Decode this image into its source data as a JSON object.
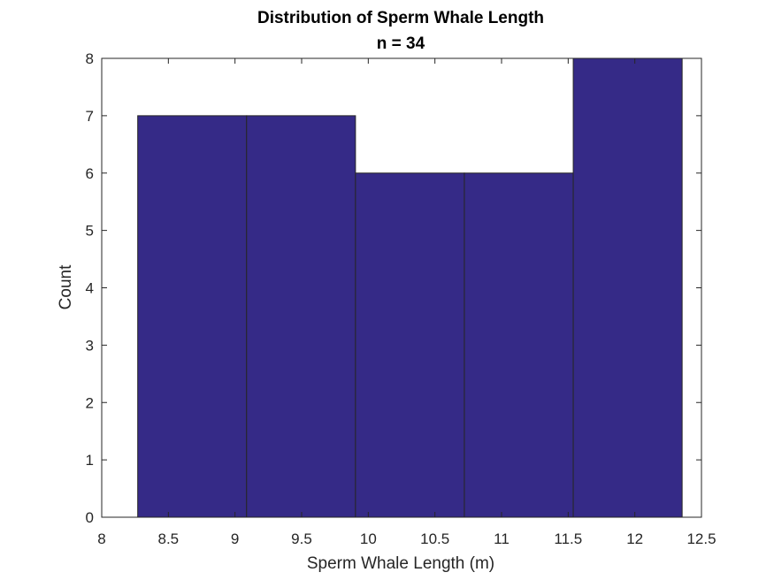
{
  "chart_data": {
    "type": "bar",
    "title": "Distribution of Sperm Whale Length",
    "subtitle": "n = 34",
    "xlabel": "Sperm Whale Length (m)",
    "ylabel": "Count",
    "bin_edges": [
      8.27,
      9.087,
      9.904,
      10.721,
      11.538,
      12.355
    ],
    "values": [
      7,
      7,
      6,
      6,
      8
    ],
    "xlim": [
      8,
      12.5
    ],
    "ylim": [
      0,
      8
    ],
    "xticks": [
      8,
      8.5,
      9,
      9.5,
      10,
      10.5,
      11,
      11.5,
      12,
      12.5
    ],
    "xtick_labels": [
      "8",
      "8.5",
      "9",
      "9.5",
      "10",
      "10.5",
      "11",
      "11.5",
      "12",
      "12.5"
    ],
    "yticks": [
      0,
      1,
      2,
      3,
      4,
      5,
      6,
      7,
      8
    ],
    "ytick_labels": [
      "0",
      "1",
      "2",
      "3",
      "4",
      "5",
      "6",
      "7",
      "8"
    ],
    "grid": false,
    "bar_color": "#352a87",
    "edge_color": "#262626",
    "axis_color": "#262626"
  }
}
